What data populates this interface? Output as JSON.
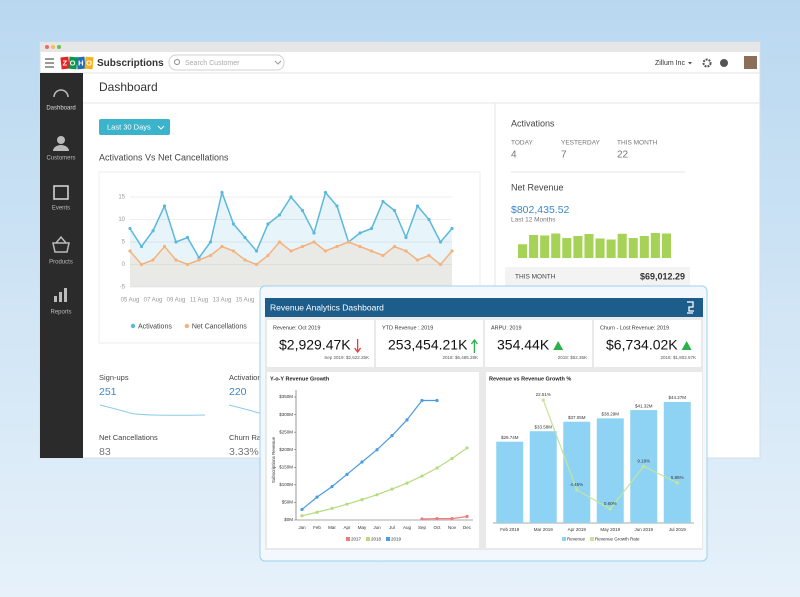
{
  "window": {
    "logo": "ZOHO",
    "brand": "Subscriptions",
    "search_placeholder": "Search Customer",
    "org": "Zillum Inc"
  },
  "sidebar": [
    "Dashboard",
    "Customers",
    "Events",
    "Products",
    "Reports"
  ],
  "page_title": "Dashboard",
  "range_button": "Last 30 Days",
  "activations": {
    "title": "Activations",
    "stats": [
      {
        "label": "TODAY",
        "value": 4
      },
      {
        "label": "YESTERDAY",
        "value": 7
      },
      {
        "label": "THIS MONTH",
        "value": 22
      }
    ]
  },
  "net_revenue": {
    "title": "Net Revenue",
    "amount": "$802,435.52",
    "period": "Last 12 Months",
    "this_month_label": "THIS MONTH",
    "this_month": "$69,012.29"
  },
  "metrics": [
    {
      "label": "Sign-ups",
      "value": 251
    },
    {
      "label": "Activations",
      "value": 220
    },
    {
      "label": "Net Cancellations",
      "value": 83
    },
    {
      "label": "Churn Rate",
      "value": "3.33%"
    }
  ],
  "overlay": {
    "title": "Revenue Analytics Dashboard",
    "kpis": [
      {
        "label": "Revenue: Oct 2019",
        "value": "$2,929.47K",
        "trend": "down",
        "compare": "Sep 2019: $2,622.25K"
      },
      {
        "label": "YTD Revenue : 2019",
        "value": "253,454.21K",
        "trend": "up",
        "compare": "2018: $6,485.28K"
      },
      {
        "label": "ARPU: 2019",
        "value": "354.44K",
        "trend": "up-triangle",
        "compare": "2018: $52.36K"
      },
      {
        "label": "Churn - Lost Revenue: 2019",
        "value": "$6,734.02K",
        "trend": "up-triangle",
        "compare": "2018: $1,802.57K"
      }
    ]
  },
  "chart_data": [
    {
      "type": "line",
      "title": "Activations Vs Net Cancellations",
      "categories": [
        "05 Aug",
        null,
        "07 Aug",
        null,
        "09 Aug",
        null,
        "11 Aug",
        null,
        "13 Aug",
        null,
        "15 Aug",
        null,
        null,
        null,
        null,
        null,
        null,
        null,
        null,
        null,
        null,
        null,
        null,
        null,
        null,
        null,
        null,
        null,
        null
      ],
      "series": [
        {
          "name": "Activations",
          "color": "#5bb8db",
          "values": [
            8,
            4,
            7.5,
            13,
            5,
            6,
            1.5,
            5,
            16,
            9,
            6,
            3,
            9,
            11,
            15,
            12,
            7,
            16,
            13,
            5,
            7,
            8,
            14,
            12,
            6,
            13,
            10,
            5,
            8
          ]
        },
        {
          "name": "Net Cancellations",
          "color": "#f5b27c",
          "values": [
            3,
            0,
            1,
            4,
            1,
            0,
            1,
            2,
            4,
            3,
            1,
            0,
            2,
            5,
            3,
            4,
            5,
            3,
            4,
            5,
            4,
            3,
            2,
            4,
            3,
            1,
            2,
            0,
            3
          ]
        }
      ],
      "ylim": [
        -5,
        15
      ],
      "yticks": [
        15,
        10,
        5,
        0,
        -5
      ],
      "grid": true,
      "area": true
    },
    {
      "type": "bar",
      "values": [
        55,
        92,
        90,
        98,
        80,
        88,
        96,
        78,
        74,
        97,
        80,
        88,
        100,
        98
      ],
      "color": "#a6d257"
    },
    {
      "type": "line",
      "title": "Y-o-Y Revenue Growth",
      "y_label": "Subscriptions Revenue",
      "categories": [
        "Jan",
        "Feb",
        "Mar",
        "Apr",
        "May",
        "Jun",
        "Jul",
        "Aug",
        "Sep",
        "Oct",
        "Nov",
        "Dec"
      ],
      "series": [
        {
          "name": "2017",
          "color": "#ef7b7b",
          "values": [
            null,
            null,
            null,
            null,
            null,
            null,
            null,
            null,
            3,
            4,
            4,
            10
          ]
        },
        {
          "name": "2018",
          "color": "#b5dc7f",
          "values": [
            12,
            22,
            33,
            45,
            58,
            72,
            88,
            105,
            125,
            148,
            175,
            205
          ]
        },
        {
          "name": "2019",
          "color": "#4b9be0",
          "values": [
            30,
            65,
            95,
            130,
            165,
            200,
            240,
            285,
            340,
            340,
            null,
            null
          ]
        }
      ],
      "ylim": [
        0,
        350
      ],
      "yticks": [
        {
          "value": 0,
          "label": "$0M"
        },
        {
          "value": 50,
          "label": "$50M"
        },
        {
          "value": 100,
          "label": "$100M"
        },
        {
          "value": 150,
          "label": "$150M"
        },
        {
          "value": 200,
          "label": "$200M"
        },
        {
          "value": 250,
          "label": "$250M"
        },
        {
          "value": 300,
          "label": "$300M"
        },
        {
          "value": 350,
          "label": "$350M"
        }
      ]
    },
    {
      "type": "bar-line",
      "title": "Revenue vs Revenue Growth %",
      "categories": [
        "Feb 2019",
        "Mar 2019",
        "Apr 2019",
        "May 2019",
        "Jun 2019",
        "Jul 2019"
      ],
      "series": [
        {
          "name": "Revenue",
          "type": "bar",
          "color": "#8fd3f4",
          "values": [
            29.74,
            33.58,
            37.05,
            38.29,
            41.32,
            44.27
          ],
          "value_labels": [
            "$29.74M",
            "$33.58M",
            "$37.05M",
            "$38.29M",
            "$41.32M",
            "$44.27M"
          ]
        },
        {
          "name": "Revenue Growth Rate",
          "type": "line",
          "axis": "y2",
          "color": "#c2e59a",
          "values": [
            null,
            22.51,
            4.45,
            0.6,
            9.19,
            5.85
          ],
          "value_labels": [
            null,
            "22.51%",
            "4.45%",
            "0.60%",
            "9.19%",
            "5.85%"
          ]
        }
      ]
    }
  ]
}
